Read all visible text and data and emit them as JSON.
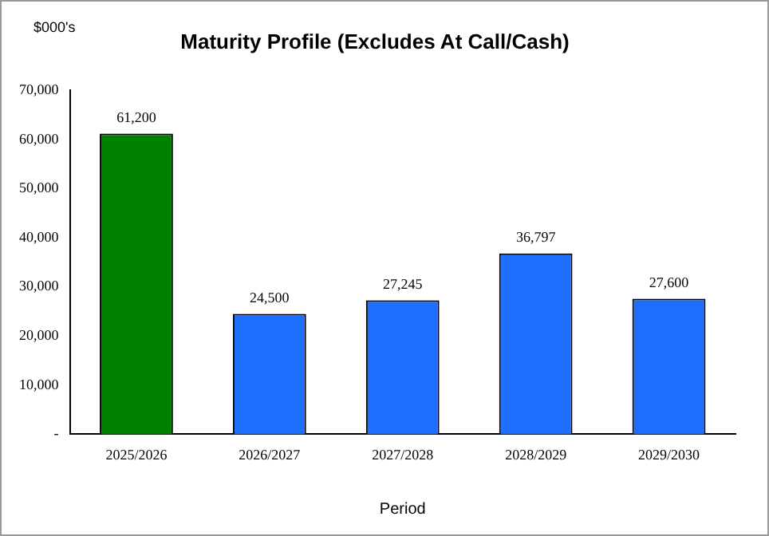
{
  "chart_data": {
    "type": "bar",
    "title": "Maturity Profile (Excludes At Call/Cash)",
    "ylabel": "$000's",
    "xlabel": "Period",
    "categories": [
      "2025/2026",
      "2026/2027",
      "2027/2028",
      "2028/2029",
      "2029/2030"
    ],
    "values": [
      61200,
      24500,
      27245,
      36797,
      27600
    ],
    "colors": [
      "#008000",
      "#1f6fff",
      "#1f6fff",
      "#1f6fff",
      "#1f6fff"
    ],
    "value_labels": [
      "61,200",
      "24,500",
      "27,245",
      "36,797",
      "27,600"
    ],
    "ylim": [
      0,
      70000
    ],
    "yticks": [
      {
        "value": 0,
        "label": "-"
      },
      {
        "value": 10000,
        "label": "10,000"
      },
      {
        "value": 20000,
        "label": "20,000"
      },
      {
        "value": 30000,
        "label": "30,000"
      },
      {
        "value": 40000,
        "label": "40,000"
      },
      {
        "value": 50000,
        "label": "50,000"
      },
      {
        "value": 60000,
        "label": "60,000"
      },
      {
        "value": 70000,
        "label": "70,000"
      }
    ],
    "grid": false,
    "legend": false
  }
}
